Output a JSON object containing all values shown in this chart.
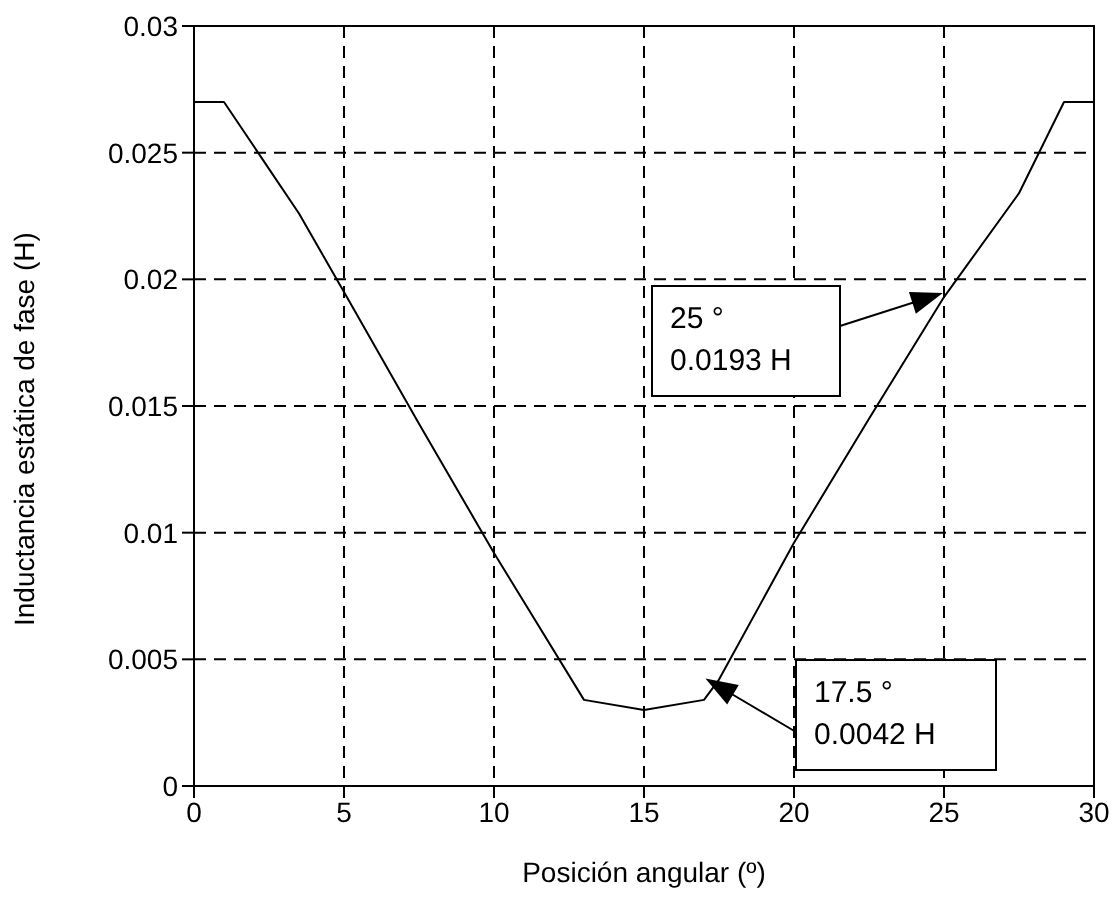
{
  "chart_data": {
    "type": "line",
    "xlabel": "Posición angular (º)",
    "ylabel": "Inductancia estática de fase (H)",
    "x": [
      0,
      1,
      3.5,
      5,
      7.5,
      10,
      13,
      15,
      17,
      17.5,
      20,
      22.5,
      25,
      27.5,
      29,
      30
    ],
    "series": [
      {
        "color": "#000000",
        "values": [
          0.027,
          0.027,
          0.0226,
          0.0195,
          0.0143,
          0.0092,
          0.0034,
          0.003,
          0.0034,
          0.0042,
          0.0096,
          0.0145,
          0.0193,
          0.0234,
          0.027,
          0.027
        ]
      }
    ],
    "xlim": [
      0,
      30
    ],
    "xticks": [
      0,
      5,
      10,
      15,
      20,
      25,
      30
    ],
    "ylim": [
      0,
      0.03
    ],
    "yticks": [
      0,
      0.005,
      0.01,
      0.015,
      0.02,
      0.025,
      0.03
    ],
    "grid": true,
    "marker": "none",
    "line_style": "solid",
    "annotations": [
      "25 °\n0.0193 H",
      "17.5 °\n0.0042 H"
    ]
  }
}
